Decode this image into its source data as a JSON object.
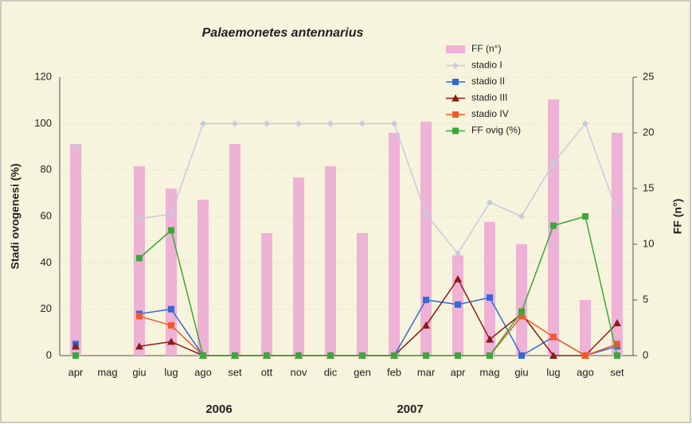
{
  "chart_data": {
    "type": "combo",
    "title": "Palaemonetes antennarius",
    "y_label": "Stadi ovogenesi (%)",
    "y2_label": "FF (n°)",
    "categories": [
      "apr",
      "mag",
      "giu",
      "lug",
      "ago",
      "set",
      "ott",
      "nov",
      "dic",
      "gen",
      "feb",
      "mar",
      "apr",
      "mag",
      "giu",
      "lug",
      "ago",
      "set"
    ],
    "year_labels": [
      "2006",
      "2007"
    ],
    "ylim": [
      0,
      120
    ],
    "yticks": [
      0,
      20,
      40,
      60,
      80,
      100,
      120
    ],
    "y2lim": [
      0,
      25
    ],
    "y2ticks": [
      0,
      5,
      10,
      15,
      20,
      25
    ],
    "grid": true,
    "series": [
      {
        "name": "FF (n°)",
        "type": "bar",
        "axis": "y2",
        "color": "#eeb2d6",
        "values": [
          19,
          null,
          17,
          15,
          14,
          19,
          11,
          16,
          17,
          11,
          20,
          21,
          9,
          12,
          10,
          23,
          5,
          20
        ]
      },
      {
        "name": "stadio I",
        "type": "line",
        "marker": "diamond",
        "color": "#c5cadf",
        "values": [
          90,
          null,
          59,
          61,
          100,
          100,
          100,
          100,
          100,
          100,
          100,
          61,
          44,
          66,
          60,
          83,
          100,
          62
        ]
      },
      {
        "name": "stadio II",
        "type": "line",
        "marker": "square",
        "color": "#3568d4",
        "values": [
          5,
          null,
          18,
          20,
          0,
          0,
          0,
          0,
          0,
          0,
          0,
          24,
          22,
          25,
          0,
          8,
          0,
          4
        ]
      },
      {
        "name": "stadio III",
        "type": "line",
        "marker": "triangle",
        "color": "#8b1c12",
        "values": [
          4,
          null,
          4,
          6,
          0,
          0,
          0,
          0,
          0,
          0,
          0,
          13,
          33,
          7,
          18,
          0,
          0,
          14
        ]
      },
      {
        "name": "stadio IV",
        "type": "line",
        "marker": "square",
        "color": "#f05a28",
        "values": [
          null,
          null,
          17,
          13,
          0,
          0,
          0,
          0,
          0,
          0,
          0,
          0,
          0,
          0,
          17,
          8,
          0,
          5
        ]
      },
      {
        "name": "FF ovig (%)",
        "type": "line",
        "marker": "square",
        "color": "#3aa83a",
        "values": [
          0,
          null,
          42,
          54,
          0,
          0,
          0,
          0,
          0,
          0,
          0,
          0,
          0,
          0,
          19,
          56,
          60,
          0
        ]
      }
    ]
  }
}
